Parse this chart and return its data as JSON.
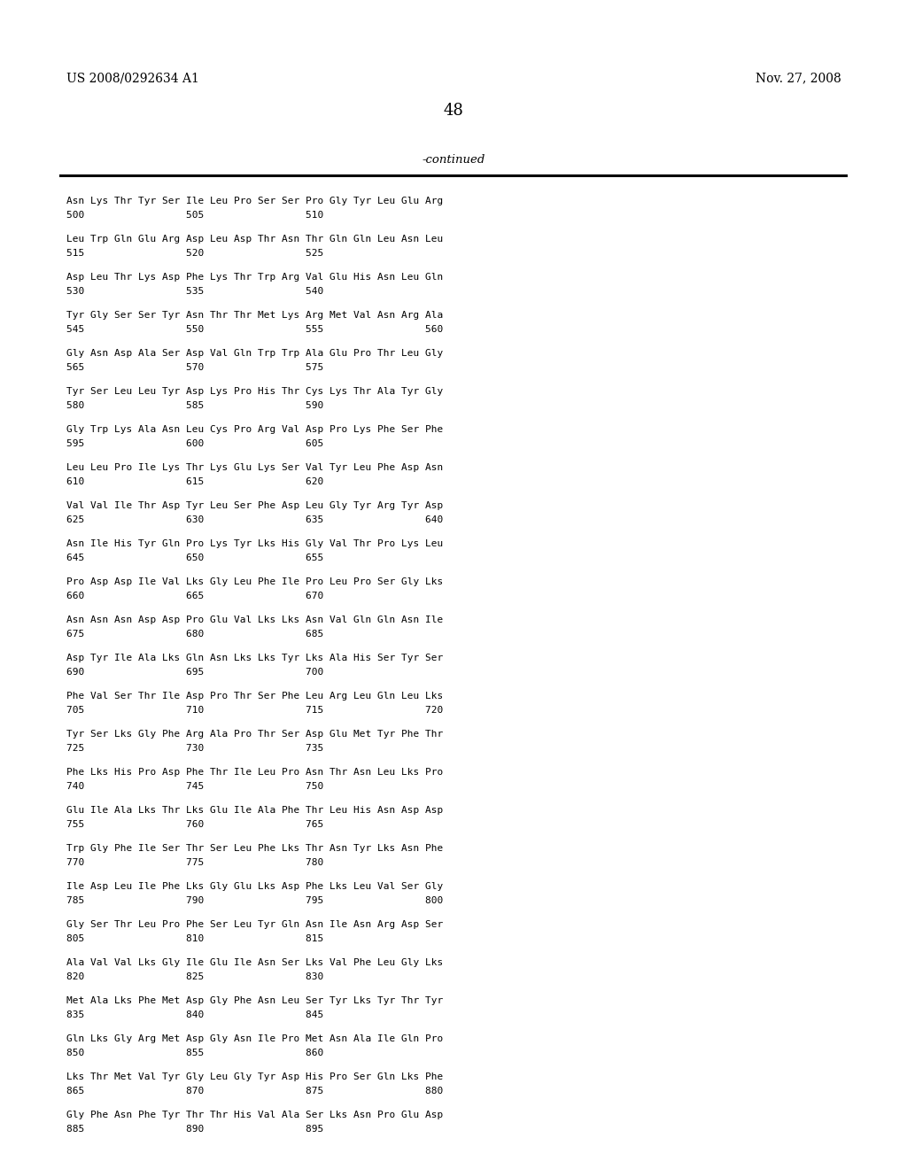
{
  "header_left": "US 2008/0292634 A1",
  "header_right": "Nov. 27, 2008",
  "page_number": "48",
  "continued_label": "-continued",
  "seq_lines": [
    [
      "Asn Lys Thr Tyr Ser Ile Leu Pro Ser Ser Pro Gly Tyr Leu Glu Arg",
      "500                 505                 510"
    ],
    [
      "Leu Trp Gln Glu Arg Asp Leu Asp Thr Asn Thr Gln Gln Leu Asn Leu",
      "515                 520                 525"
    ],
    [
      "Asp Leu Thr Lys Asp Phe Lys Thr Trp Arg Val Glu His Asn Leu Gln",
      "530                 535                 540"
    ],
    [
      "Tyr Gly Ser Ser Tyr Asn Thr Thr Met Lys Arg Met Val Asn Arg Ala",
      "545                 550                 555                 560"
    ],
    [
      "Gly Asn Asp Ala Ser Asp Val Gln Trp Trp Ala Glu Pro Thr Leu Gly",
      "565                 570                 575"
    ],
    [
      "Tyr Ser Leu Leu Tyr Asp Lys Pro His Thr Cys Lys Thr Ala Tyr Gly",
      "580                 585                 590"
    ],
    [
      "Gly Trp Lys Ala Asn Leu Cys Pro Arg Val Asp Pro Lys Phe Ser Phe",
      "595                 600                 605"
    ],
    [
      "Leu Leu Pro Ile Lys Thr Lys Glu Lys Ser Val Tyr Leu Phe Asp Asn",
      "610                 615                 620"
    ],
    [
      "Val Val Ile Thr Asp Tyr Leu Ser Phe Asp Leu Gly Tyr Arg Tyr Asp",
      "625                 630                 635                 640"
    ],
    [
      "Asn Ile His Tyr Gln Pro Lys Tyr Lks His Gly Val Thr Pro Lys Leu",
      "645                 650                 655"
    ],
    [
      "Pro Asp Asp Ile Val Lks Gly Leu Phe Ile Pro Leu Pro Ser Gly Lks",
      "660                 665                 670"
    ],
    [
      "Asn Asn Asn Asp Asp Pro Glu Val Lks Lks Asn Val Gln Gln Asn Ile",
      "675                 680                 685"
    ],
    [
      "Asp Tyr Ile Ala Lks Gln Asn Lks Lks Tyr Lks Ala His Ser Tyr Ser",
      "690                 695                 700"
    ],
    [
      "Phe Val Ser Thr Ile Asp Pro Thr Ser Phe Leu Arg Leu Gln Leu Lks",
      "705                 710                 715                 720"
    ],
    [
      "Tyr Ser Lks Gly Phe Arg Ala Pro Thr Ser Asp Glu Met Tyr Phe Thr",
      "725                 730                 735"
    ],
    [
      "Phe Lks His Pro Asp Phe Thr Ile Leu Pro Asn Thr Asn Leu Lks Pro",
      "740                 745                 750"
    ],
    [
      "Glu Ile Ala Lks Thr Lks Glu Ile Ala Phe Thr Leu His Asn Asp Asp",
      "755                 760                 765"
    ],
    [
      "Trp Gly Phe Ile Ser Thr Ser Leu Phe Lks Thr Asn Tyr Lks Asn Phe",
      "770                 775                 780"
    ],
    [
      "Ile Asp Leu Ile Phe Lks Gly Glu Lks Asp Phe Lks Leu Val Ser Gly",
      "785                 790                 795                 800"
    ],
    [
      "Gly Ser Thr Leu Pro Phe Ser Leu Tyr Gln Asn Ile Asn Arg Asp Ser",
      "805                 810                 815"
    ],
    [
      "Ala Val Val Lks Gly Ile Glu Ile Asn Ser Lks Val Phe Leu Gly Lks",
      "820                 825                 830"
    ],
    [
      "Met Ala Lks Phe Met Asp Gly Phe Asn Leu Ser Tyr Lks Tyr Thr Tyr",
      "835                 840                 845"
    ],
    [
      "Gln Lks Gly Arg Met Asp Gly Asn Ile Pro Met Asn Ala Ile Gln Pro",
      "850                 855                 860"
    ],
    [
      "Lks Thr Met Val Tyr Gly Leu Gly Tyr Asp His Pro Ser Gln Lks Phe",
      "865                 870                 875                 880"
    ],
    [
      "Gly Phe Asn Phe Tyr Thr Thr His Val Ala Ser Lks Asn Pro Glu Asp",
      "885                 890                 895"
    ]
  ]
}
